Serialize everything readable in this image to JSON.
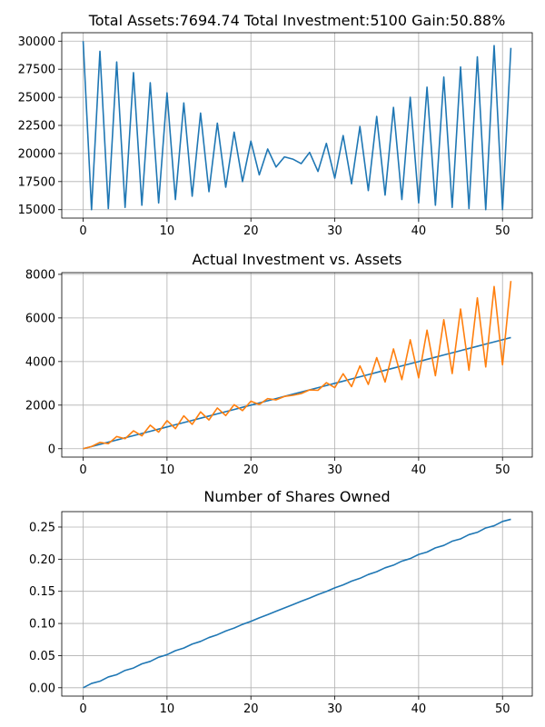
{
  "chart_data": [
    {
      "type": "line",
      "title": "Total Assets:7694.74  Total Investment:5100  Gain:50.88%",
      "xlabel": "",
      "ylabel": "",
      "xlim": [
        -2.55,
        53.55
      ],
      "ylim": [
        14250,
        30750
      ],
      "grid": true,
      "xticks": [
        0,
        10,
        20,
        30,
        40,
        50
      ],
      "yticks": [
        15000,
        17500,
        20000,
        22500,
        25000,
        27500,
        30000
      ],
      "ytick_labels": [
        "15000",
        "17500",
        "20000",
        "22500",
        "25000",
        "27500",
        "30000"
      ],
      "series": [
        {
          "color": "#1f77b4",
          "x": [
            0,
            1,
            2,
            3,
            4,
            5,
            6,
            7,
            8,
            9,
            10,
            11,
            12,
            13,
            14,
            15,
            16,
            17,
            18,
            19,
            20,
            21,
            22,
            23,
            24,
            25,
            26,
            27,
            28,
            29,
            30,
            31,
            32,
            33,
            34,
            35,
            36,
            37,
            38,
            39,
            40,
            41,
            42,
            43,
            44,
            45,
            46,
            47,
            48,
            49,
            50,
            51
          ],
          "y": [
            30000,
            15000,
            29100,
            15100,
            28150,
            15200,
            27200,
            15400,
            26300,
            15600,
            25400,
            15900,
            24500,
            16200,
            23600,
            16600,
            22700,
            17000,
            21900,
            17500,
            21100,
            18100,
            20400,
            18800,
            19700,
            19500,
            19100,
            20100,
            18400,
            20900,
            17800,
            21600,
            17300,
            22400,
            16700,
            23300,
            16300,
            24100,
            15900,
            25000,
            15600,
            25900,
            15400,
            26800,
            15200,
            27700,
            15100,
            28600,
            15000,
            29600,
            15000,
            29400
          ]
        }
      ]
    },
    {
      "type": "line",
      "title": "Actual Investment vs. Assets",
      "xlabel": "",
      "ylabel": "",
      "xlim": [
        -2.55,
        53.55
      ],
      "ylim": [
        -384.7,
        8079.5
      ],
      "grid": true,
      "xticks": [
        0,
        10,
        20,
        30,
        40,
        50
      ],
      "yticks": [
        0,
        2000,
        4000,
        6000,
        8000
      ],
      "ytick_labels": [
        "0",
        "2000",
        "4000",
        "6000",
        "8000"
      ],
      "series": [
        {
          "color": "#1f77b4",
          "x": [
            0,
            1,
            2,
            3,
            4,
            5,
            6,
            7,
            8,
            9,
            10,
            11,
            12,
            13,
            14,
            15,
            16,
            17,
            18,
            19,
            20,
            21,
            22,
            23,
            24,
            25,
            26,
            27,
            28,
            29,
            30,
            31,
            32,
            33,
            34,
            35,
            36,
            37,
            38,
            39,
            40,
            41,
            42,
            43,
            44,
            45,
            46,
            47,
            48,
            49,
            50,
            51
          ],
          "y": [
            0,
            100,
            200,
            300,
            400,
            500,
            600,
            700,
            800,
            900,
            1000,
            1100,
            1200,
            1300,
            1400,
            1500,
            1600,
            1700,
            1800,
            1900,
            2000,
            2100,
            2200,
            2300,
            2400,
            2500,
            2600,
            2700,
            2800,
            2900,
            3000,
            3100,
            3200,
            3300,
            3400,
            3500,
            3600,
            3700,
            3800,
            3900,
            4000,
            4100,
            4200,
            4300,
            4400,
            4500,
            4600,
            4700,
            4800,
            4900,
            5000,
            5100
          ]
        },
        {
          "color": "#ff7f0e",
          "x": [
            0,
            1,
            2,
            3,
            4,
            5,
            6,
            7,
            8,
            9,
            10,
            11,
            12,
            13,
            14,
            15,
            16,
            17,
            18,
            19,
            20,
            21,
            22,
            23,
            24,
            25,
            26,
            27,
            28,
            29,
            30,
            31,
            32,
            33,
            34,
            35,
            36,
            37,
            38,
            39,
            40,
            41,
            42,
            43,
            44,
            45,
            46,
            47,
            48,
            49,
            50,
            51
          ],
          "y": [
            0,
            100,
            290,
            230,
            560,
            460,
            820,
            590,
            1080,
            760,
            1290,
            920,
            1510,
            1120,
            1690,
            1320,
            1870,
            1520,
            2020,
            1750,
            2180,
            2030,
            2300,
            2240,
            2400,
            2450,
            2530,
            2700,
            2680,
            3030,
            2800,
            3440,
            2850,
            3800,
            2950,
            4180,
            3060,
            4580,
            3170,
            5000,
            3250,
            5440,
            3350,
            5920,
            3450,
            6410,
            3600,
            6920,
            3750,
            7440,
            3850,
            7695
          ]
        }
      ]
    },
    {
      "type": "line",
      "title": "Number of Shares Owned",
      "xlabel": "",
      "ylabel": "",
      "xlim": [
        -2.55,
        53.55
      ],
      "ylim": [
        -0.013,
        0.274
      ],
      "grid": true,
      "xticks": [
        0,
        10,
        20,
        30,
        40,
        50
      ],
      "yticks": [
        0,
        0.05,
        0.1,
        0.15,
        0.2,
        0.25
      ],
      "ytick_labels": [
        "0.00",
        "0.05",
        "0.10",
        "0.15",
        "0.20",
        "0.25"
      ],
      "series": [
        {
          "color": "#1f77b4",
          "x": [
            0,
            1,
            2,
            3,
            4,
            5,
            6,
            7,
            8,
            9,
            10,
            11,
            12,
            13,
            14,
            15,
            16,
            17,
            18,
            19,
            20,
            21,
            22,
            23,
            24,
            25,
            26,
            27,
            28,
            29,
            30,
            31,
            32,
            33,
            34,
            35,
            36,
            37,
            38,
            39,
            40,
            41,
            42,
            43,
            44,
            45,
            46,
            47,
            48,
            49,
            50,
            51
          ],
          "y": [
            0,
            0.0067,
            0.0101,
            0.0168,
            0.0203,
            0.027,
            0.0307,
            0.0372,
            0.041,
            0.0475,
            0.0514,
            0.0577,
            0.0618,
            0.0679,
            0.0721,
            0.0781,
            0.0825,
            0.0883,
            0.0929,
            0.0986,
            0.1033,
            0.1088,
            0.1137,
            0.119,
            0.1241,
            0.1293,
            0.1345,
            0.1395,
            0.145,
            0.1498,
            0.1554,
            0.16,
            0.1658,
            0.1702,
            0.1762,
            0.1805,
            0.1866,
            0.1907,
            0.197,
            0.2009,
            0.2074,
            0.2111,
            0.2176,
            0.2214,
            0.228,
            0.2316,
            0.2382,
            0.2418,
            0.2486,
            0.252,
            0.2587,
            0.2621
          ]
        }
      ]
    }
  ]
}
